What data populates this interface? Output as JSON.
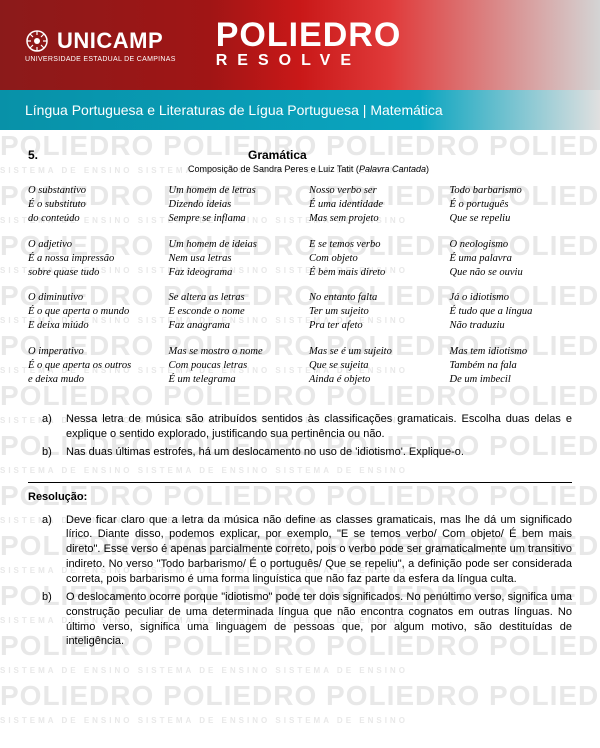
{
  "header": {
    "unicamp": "UNICAMP",
    "unicamp_sub": "UNIVERSIDADE ESTADUAL DE CAMPINAS",
    "poliedro": "POLIEDRO",
    "resolve": "RESOLVE",
    "bar": "Língua Portuguesa e Literaturas de Lígua Portuguesa | Matemática"
  },
  "watermark": "POLIEDRO POLIEDRO POLIEDRO",
  "watermark_sub": "SISTEMA DE ENSINO    SISTEMA DE ENSINO    SISTEMA DE ENSINO",
  "question": {
    "number": "5.",
    "title": "Gramática",
    "subtitle_prefix": "Composição de Sandra Peres e Luiz Tatit (",
    "subtitle_italic": "Palavra Cantada",
    "subtitle_suffix": ")"
  },
  "poem": {
    "col1": [
      [
        "O substantivo",
        "É o substituto",
        "do conteúdo"
      ],
      [
        "O adjetivo",
        "É a nossa impressão",
        "sobre quase tudo"
      ],
      [
        "O diminutivo",
        "É o que aperta o mundo",
        "E deixa miúdo"
      ],
      [
        "O imperativo",
        "É o que aperta os outros",
        "e deixa mudo"
      ]
    ],
    "col2": [
      [
        "Um homem de letras",
        "Dizendo ideias",
        "Sempre se inflama"
      ],
      [
        "Um homem de ideias",
        "Nem usa letras",
        "Faz ideograma"
      ],
      [
        "Se altera as letras",
        "E esconde o nome",
        "Faz anagrama"
      ],
      [
        "Mas se mostro o nome",
        "Com poucas letras",
        "É um telegrama"
      ]
    ],
    "col3": [
      [
        "Nosso verbo ser",
        "É uma identidade",
        "Mas sem projeto"
      ],
      [
        "E se temos verbo",
        "Com objeto",
        "É bem mais direto"
      ],
      [
        "No entanto falta",
        "Ter um sujeito",
        "Pra ter afeto"
      ],
      [
        "Mas se é um sujeito",
        "Que se sujeita",
        "Ainda é objeto"
      ]
    ],
    "col4": [
      [
        "Todo barbarismo",
        "É o português",
        "Que se repeliu"
      ],
      [
        "O neologismo",
        "É uma palavra",
        "Que não se ouviu"
      ],
      [
        "Já o idiotismo",
        "É tudo que a língua",
        "Não traduziu"
      ],
      [
        "Mas tem idiotismo",
        "Também na fala",
        "De um imbecil"
      ]
    ]
  },
  "questions": {
    "a": "Nessa letra de música são atribuídos sentidos às classificações gramaticais. Escolha duas delas e explique o sentido explorado, justificando sua pertinência ou não.",
    "b": "Nas duas últimas estrofes, há um deslocamento no uso de 'idiotismo'. Explique-o."
  },
  "resolution": {
    "title": "Resolução:",
    "a": "Deve ficar claro que a letra da música não define as classes gramaticais, mas lhe dá um significado lírico. Diante disso, podemos explicar, por exemplo, \"E se temos verbo/ Com objeto/ É bem mais direto\". Esse verso é apenas parcialmente correto, pois o verbo pode ser gramaticalmente um transitivo indireto.  No verso \"Todo barbarismo/ É o português/ Que se repeliu\", a definição pode ser considerada correta, pois barbarismo é uma forma linguística que não faz parte da esfera da língua culta.",
    "b": "O deslocamento ocorre porque \"idiotismo\" pode ter dois significados. No penúltimo verso, significa uma construção peculiar de uma determinada língua que não encontra cognatos em outras línguas. No último verso, significa uma linguagem de pessoas que, por algum motivo, são destituídas de inteligência."
  }
}
